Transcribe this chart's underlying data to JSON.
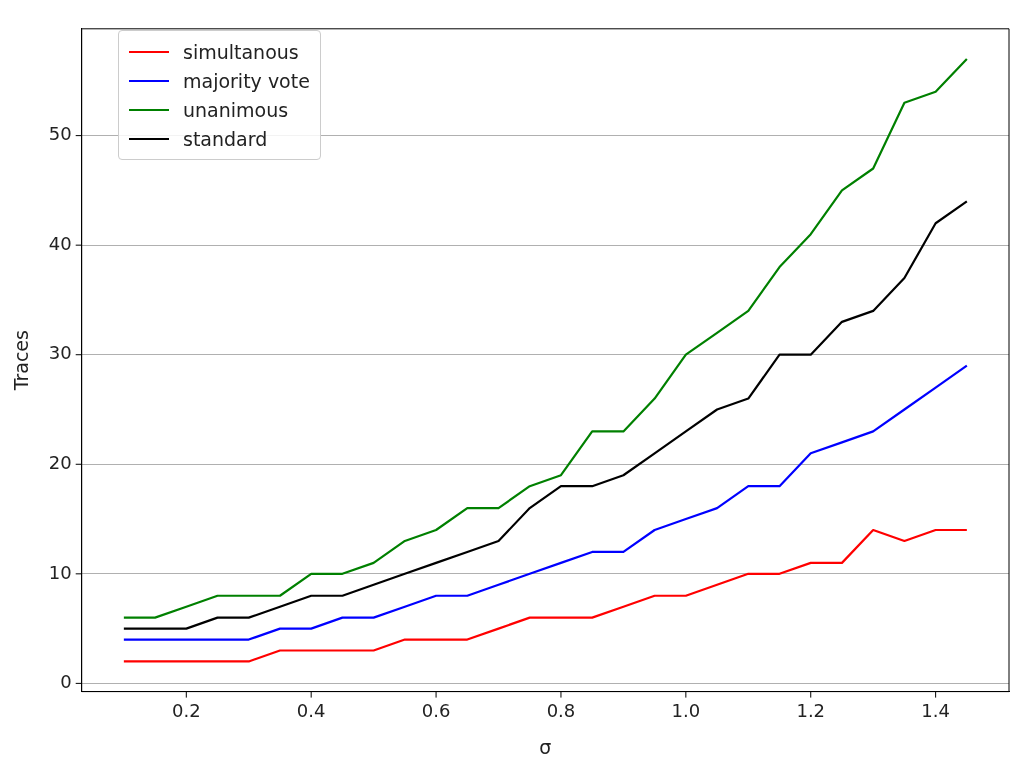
{
  "chart_data": {
    "type": "line",
    "xlabel": "σ",
    "ylabel": "Traces",
    "x": [
      0.1,
      0.15,
      0.2,
      0.25,
      0.3,
      0.35,
      0.4,
      0.45,
      0.5,
      0.55,
      0.6,
      0.65,
      0.7,
      0.75,
      0.8,
      0.85,
      0.9,
      0.95,
      1.0,
      1.05,
      1.1,
      1.15,
      1.2,
      1.25,
      1.3,
      1.35,
      1.4,
      1.45
    ],
    "series": [
      {
        "name": "simultanous",
        "color": "#ff0000",
        "values": [
          2,
          2,
          2,
          2,
          2,
          3,
          3,
          3,
          3,
          4,
          4,
          4,
          5,
          6,
          6,
          6,
          7,
          8,
          8,
          9,
          10,
          10,
          11,
          11,
          14,
          13,
          14,
          14
        ]
      },
      {
        "name": "majority vote",
        "color": "#0000ff",
        "values": [
          4,
          4,
          4,
          4,
          4,
          5,
          5,
          6,
          6,
          7,
          8,
          8,
          9,
          10,
          11,
          12,
          12,
          14,
          15,
          16,
          18,
          18,
          21,
          22,
          23,
          25,
          27,
          29
        ]
      },
      {
        "name": "unanimous",
        "color": "#008000",
        "values": [
          6,
          6,
          7,
          8,
          8,
          8,
          10,
          10,
          11,
          13,
          14,
          16,
          16,
          18,
          19,
          23,
          23,
          26,
          30,
          32,
          34,
          38,
          41,
          45,
          47,
          53,
          54,
          57
        ]
      },
      {
        "name": "standard",
        "color": "#000000",
        "values": [
          5,
          5,
          5,
          6,
          6,
          7,
          8,
          8,
          9,
          10,
          11,
          12,
          13,
          16,
          18,
          18,
          19,
          21,
          23,
          25,
          26,
          30,
          30,
          33,
          34,
          37,
          42,
          44
        ]
      }
    ],
    "xlim": [
      0.0325,
      1.5175
    ],
    "ylim": [
      -0.75,
      59.75
    ],
    "xticks": [
      0.2,
      0.4,
      0.6,
      0.8,
      {
        "value": 1.0,
        "label": "1.0"
      },
      1.2,
      1.4
    ],
    "yticks": [
      0,
      10,
      20,
      30,
      40,
      50
    ],
    "grid": "y",
    "legend": "top left",
    "marker": "none",
    "line_style": "solid"
  }
}
